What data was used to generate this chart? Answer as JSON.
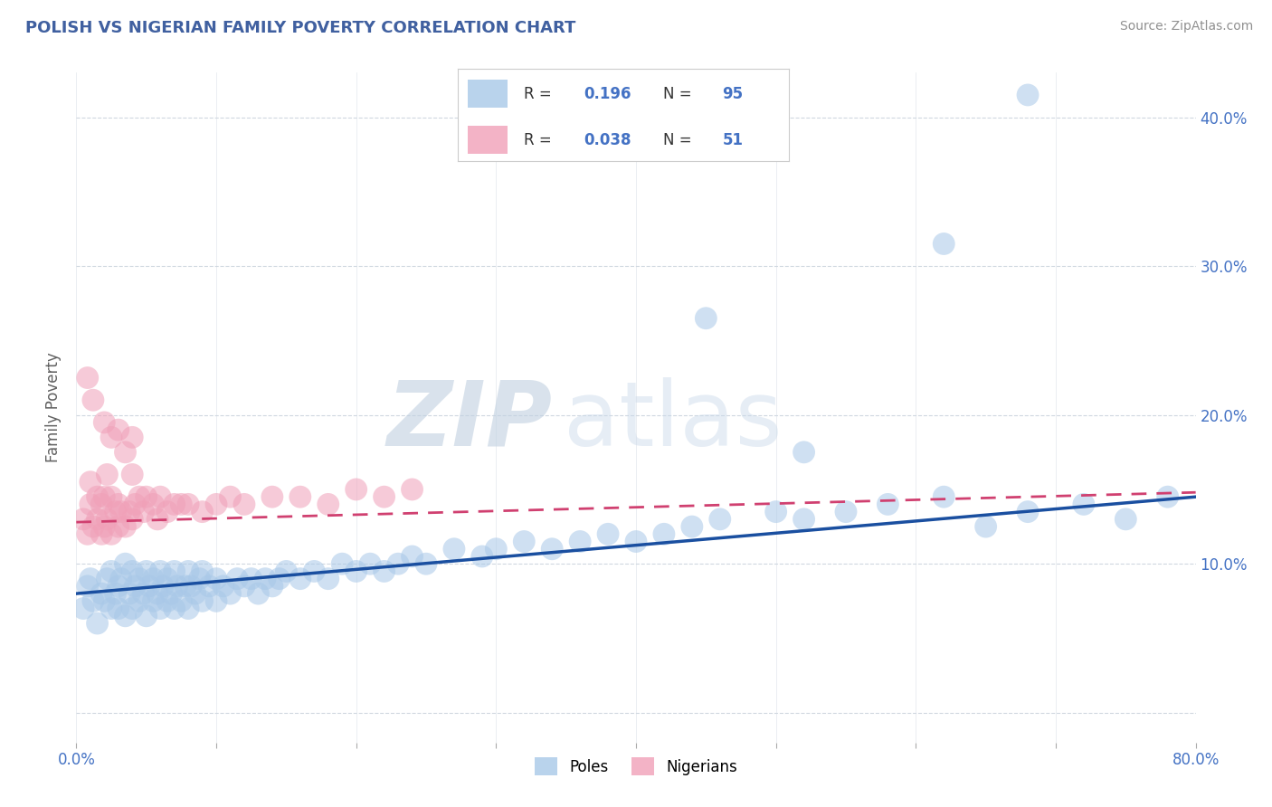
{
  "title": "POLISH VS NIGERIAN FAMILY POVERTY CORRELATION CHART",
  "source": "Source: ZipAtlas.com",
  "ylabel": "Family Poverty",
  "watermark_zip": "ZIP",
  "watermark_atlas": "atlas",
  "poles_R": 0.196,
  "poles_N": 95,
  "nigerians_R": 0.038,
  "nigerians_N": 51,
  "xlim": [
    0.0,
    0.8
  ],
  "ylim": [
    -0.02,
    0.43
  ],
  "poles_color": "#a8c8e8",
  "nigerians_color": "#f0a0b8",
  "poles_line_color": "#1a4fa0",
  "nigerians_line_color": "#d04070",
  "background_color": "#ffffff",
  "grid_color": "#d0d8e0",
  "title_color": "#4060a0",
  "source_color": "#909090",
  "tick_color": "#4472c4",
  "poles_line_y0": 0.08,
  "poles_line_y1": 0.145,
  "nigerians_line_y0": 0.128,
  "nigerians_line_y1": 0.148,
  "poles_x": [
    0.005,
    0.008,
    0.01,
    0.012,
    0.015,
    0.018,
    0.02,
    0.022,
    0.025,
    0.025,
    0.028,
    0.03,
    0.03,
    0.032,
    0.035,
    0.035,
    0.038,
    0.04,
    0.04,
    0.042,
    0.045,
    0.045,
    0.048,
    0.05,
    0.05,
    0.052,
    0.055,
    0.055,
    0.058,
    0.06,
    0.06,
    0.062,
    0.065,
    0.065,
    0.068,
    0.07,
    0.07,
    0.072,
    0.075,
    0.078,
    0.08,
    0.08,
    0.082,
    0.085,
    0.088,
    0.09,
    0.09,
    0.095,
    0.1,
    0.1,
    0.105,
    0.11,
    0.115,
    0.12,
    0.125,
    0.13,
    0.135,
    0.14,
    0.145,
    0.15,
    0.16,
    0.17,
    0.18,
    0.19,
    0.2,
    0.21,
    0.22,
    0.23,
    0.24,
    0.25,
    0.27,
    0.29,
    0.3,
    0.32,
    0.34,
    0.36,
    0.38,
    0.4,
    0.42,
    0.44,
    0.46,
    0.5,
    0.52,
    0.55,
    0.58,
    0.62,
    0.65,
    0.68,
    0.72,
    0.75,
    0.78,
    0.52,
    0.45,
    0.62,
    0.68
  ],
  "poles_y": [
    0.07,
    0.085,
    0.09,
    0.075,
    0.06,
    0.08,
    0.075,
    0.09,
    0.07,
    0.095,
    0.08,
    0.07,
    0.085,
    0.09,
    0.065,
    0.1,
    0.08,
    0.07,
    0.095,
    0.085,
    0.075,
    0.09,
    0.08,
    0.065,
    0.095,
    0.085,
    0.075,
    0.09,
    0.08,
    0.07,
    0.095,
    0.085,
    0.075,
    0.09,
    0.08,
    0.07,
    0.095,
    0.085,
    0.075,
    0.085,
    0.07,
    0.095,
    0.085,
    0.08,
    0.09,
    0.075,
    0.095,
    0.085,
    0.075,
    0.09,
    0.085,
    0.08,
    0.09,
    0.085,
    0.09,
    0.08,
    0.09,
    0.085,
    0.09,
    0.095,
    0.09,
    0.095,
    0.09,
    0.1,
    0.095,
    0.1,
    0.095,
    0.1,
    0.105,
    0.1,
    0.11,
    0.105,
    0.11,
    0.115,
    0.11,
    0.115,
    0.12,
    0.115,
    0.12,
    0.125,
    0.13,
    0.135,
    0.13,
    0.135,
    0.14,
    0.145,
    0.125,
    0.135,
    0.14,
    0.13,
    0.145,
    0.175,
    0.265,
    0.315,
    0.415
  ],
  "nigerians_x": [
    0.005,
    0.008,
    0.01,
    0.01,
    0.012,
    0.015,
    0.015,
    0.018,
    0.018,
    0.02,
    0.02,
    0.022,
    0.022,
    0.025,
    0.025,
    0.028,
    0.03,
    0.03,
    0.032,
    0.035,
    0.035,
    0.038,
    0.04,
    0.04,
    0.042,
    0.045,
    0.048,
    0.05,
    0.055,
    0.058,
    0.06,
    0.065,
    0.07,
    0.075,
    0.08,
    0.09,
    0.1,
    0.11,
    0.12,
    0.14,
    0.16,
    0.18,
    0.2,
    0.22,
    0.24,
    0.008,
    0.012,
    0.02,
    0.025,
    0.03,
    0.04
  ],
  "nigerians_y": [
    0.13,
    0.12,
    0.14,
    0.155,
    0.125,
    0.13,
    0.145,
    0.12,
    0.14,
    0.125,
    0.145,
    0.13,
    0.16,
    0.12,
    0.145,
    0.135,
    0.125,
    0.14,
    0.135,
    0.125,
    0.175,
    0.135,
    0.13,
    0.16,
    0.14,
    0.145,
    0.135,
    0.145,
    0.14,
    0.13,
    0.145,
    0.135,
    0.14,
    0.14,
    0.14,
    0.135,
    0.14,
    0.145,
    0.14,
    0.145,
    0.145,
    0.14,
    0.15,
    0.145,
    0.15,
    0.225,
    0.21,
    0.195,
    0.185,
    0.19,
    0.185
  ]
}
